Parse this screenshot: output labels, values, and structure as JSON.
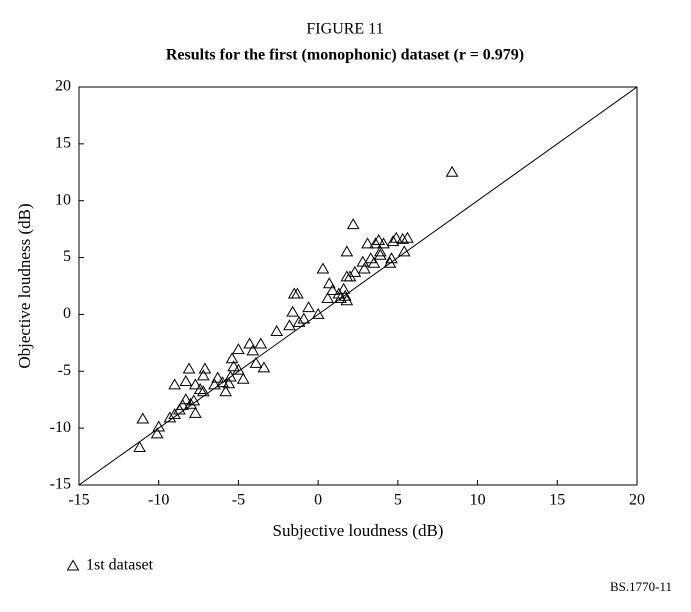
{
  "chart_data": {
    "type": "scatter",
    "title": "FIGURE 11",
    "subtitle": "Results for the first (monophonic) dataset (r = 0.979)",
    "x_label": "Subjective loudness (dB)",
    "y_label": "Objective loudness (dB)",
    "source": "BS.1770-11",
    "xlim": [
      -15,
      20
    ],
    "ylim": [
      -15,
      20
    ],
    "xticks": [
      -15,
      -10,
      -5,
      0,
      5,
      10,
      15,
      20
    ],
    "yticks": [
      -15,
      -10,
      -5,
      0,
      5,
      10,
      15,
      20
    ],
    "grid": false,
    "legend": "bottom-left",
    "series": [
      {
        "name": "1st dataset",
        "color": "#000000",
        "marker": "triangle",
        "x": [
          -11.2,
          -11.0,
          -10.1,
          -10.0,
          -9.0,
          -9.3,
          -9.0,
          -8.7,
          -8.5,
          -8.3,
          -8.3,
          -8.1,
          -8.0,
          -7.8,
          -7.7,
          -7.7,
          -7.4,
          -7.2,
          -7.1,
          -7.2,
          -6.5,
          -6.3,
          -6.0,
          -5.8,
          -5.6,
          -5.5,
          -5.4,
          -5.3,
          -5.0,
          -5.0,
          -4.7,
          -4.3,
          -4.1,
          -3.9,
          -3.6,
          -3.4,
          -2.6,
          -1.8,
          -1.6,
          -1.5,
          -1.3,
          -1.2,
          -0.9,
          -0.6,
          0,
          0.3,
          0.6,
          0.7,
          0.9,
          1.3,
          1.4,
          1.6,
          1.7,
          1.8,
          1.8,
          1.8,
          2.0,
          2.2,
          2.3,
          2.8,
          2.9,
          3.1,
          3.3,
          3.5,
          3.6,
          3.8,
          3.9,
          3.9,
          4.1,
          4.5,
          4.6,
          4.7,
          4.9,
          5.3,
          5.4,
          5.6,
          8.4
        ],
        "values": [
          -11.7,
          -9.2,
          -10.5,
          -9.9,
          -6.2,
          -9.1,
          -8.8,
          -8.4,
          -8.0,
          -7.5,
          -5.9,
          -4.8,
          -7.9,
          -7.6,
          -8.7,
          -6.2,
          -6.6,
          -6.8,
          -4.8,
          -5.4,
          -6.2,
          -5.6,
          -6.0,
          -6.8,
          -6.1,
          -5.5,
          -3.9,
          -4.6,
          -4.9,
          -3.1,
          -5.7,
          -2.6,
          -3.2,
          -4.3,
          -2.6,
          -4.7,
          -1.5,
          -1.0,
          0.2,
          1.8,
          1.8,
          -0.7,
          -0.4,
          0.6,
          0,
          4.0,
          1.4,
          2.7,
          2.1,
          1.8,
          1.4,
          2.2,
          1.6,
          1.2,
          3.3,
          5.5,
          3.3,
          7.9,
          3.7,
          4.6,
          4.0,
          6.2,
          4.9,
          4.5,
          6.2,
          6.5,
          5.5,
          5.2,
          6.2,
          4.5,
          4.9,
          6.4,
          6.7,
          6.6,
          5.5,
          6.7,
          12.5
        ]
      }
    ]
  }
}
